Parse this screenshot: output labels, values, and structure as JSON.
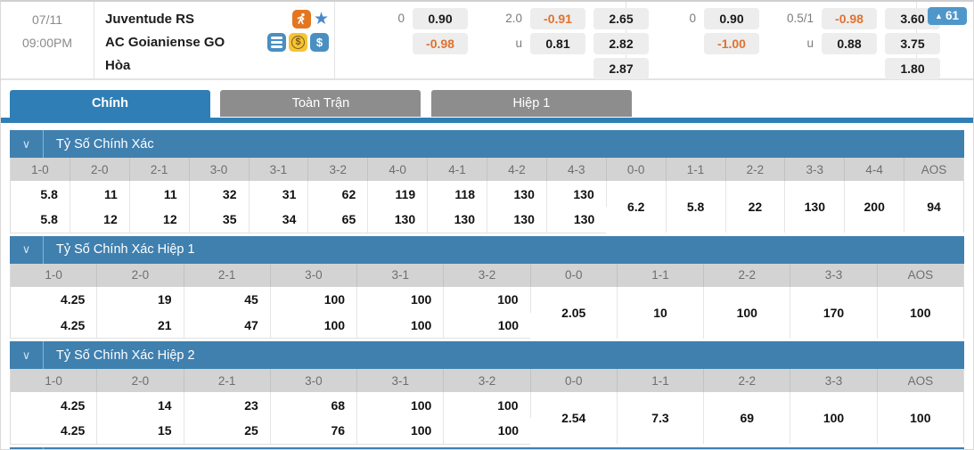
{
  "colors": {
    "accent_blue": "#2f7fb6",
    "section_blue": "#3f80af",
    "badge_blue": "#4f97ca",
    "negative_orange": "#e0722e",
    "box_gray": "#ededed",
    "header_gray": "#d3d3d3"
  },
  "match": {
    "date": "07/11",
    "time": "09:00PM",
    "home_team": "Juventude RS",
    "away_team": "AC Goianiense GO",
    "draw_label": "Hòa",
    "market_count": "61",
    "market_count_arrow": "▲",
    "home_icons": [
      "live-soccer-icon",
      "favorite-star-icon"
    ],
    "away_icons": [
      "statement-stack-icon",
      "coin-icon",
      "cash-icon"
    ],
    "odds_groups": [
      {
        "handicap_line": "0",
        "handicap_home": "0.90",
        "handicap_away": "-0.98",
        "total_line": "2.0",
        "over": "-0.91",
        "under_label": "u",
        "under": "0.81",
        "odds_1": "2.65",
        "odds_2": "2.82",
        "odds_x": "2.87"
      },
      {
        "handicap_line": "0",
        "handicap_home": "0.90",
        "handicap_away": "-1.00",
        "total_line": "0.5/1",
        "over": "-0.98",
        "under_label": "u",
        "under": "0.88",
        "odds_1": "3.60",
        "odds_2": "3.75",
        "odds_x": "1.80"
      }
    ]
  },
  "tabs": [
    {
      "label": "Chính",
      "active": true
    },
    {
      "label": "Toàn Trận",
      "active": false
    },
    {
      "label": "Hiệp 1",
      "active": false
    }
  ],
  "sections": [
    {
      "title": "Tỷ Số Chính Xác",
      "columns": [
        "1-0",
        "2-0",
        "2-1",
        "3-0",
        "3-1",
        "3-2",
        "4-0",
        "4-1",
        "4-2",
        "4-3",
        "0-0",
        "1-1",
        "2-2",
        "3-3",
        "4-4",
        "AOS"
      ],
      "row_home": [
        "5.8",
        "11",
        "11",
        "32",
        "31",
        "62",
        "119",
        "118",
        "130",
        "130"
      ],
      "row_away": [
        "5.8",
        "12",
        "12",
        "35",
        "34",
        "65",
        "130",
        "130",
        "130",
        "130"
      ],
      "merged": [
        "6.2",
        "5.8",
        "22",
        "130",
        "200",
        "94"
      ]
    },
    {
      "title": "Tỷ Số Chính Xác Hiệp 1",
      "columns": [
        "1-0",
        "2-0",
        "2-1",
        "3-0",
        "3-1",
        "3-2",
        "0-0",
        "1-1",
        "2-2",
        "3-3",
        "AOS"
      ],
      "row_home": [
        "4.25",
        "19",
        "45",
        "100",
        "100",
        "100"
      ],
      "row_away": [
        "4.25",
        "21",
        "47",
        "100",
        "100",
        "100"
      ],
      "merged": [
        "2.05",
        "10",
        "100",
        "170",
        "100"
      ]
    },
    {
      "title": "Tỷ Số Chính Xác Hiệp 2",
      "columns": [
        "1-0",
        "2-0",
        "2-1",
        "3-0",
        "3-1",
        "3-2",
        "0-0",
        "1-1",
        "2-2",
        "3-3",
        "AOS"
      ],
      "row_home": [
        "4.25",
        "14",
        "23",
        "68",
        "100",
        "100"
      ],
      "row_away": [
        "4.25",
        "15",
        "25",
        "76",
        "100",
        "100"
      ],
      "merged": [
        "2.54",
        "7.3",
        "69",
        "100",
        "100"
      ]
    }
  ],
  "bottom_partial_section": true
}
